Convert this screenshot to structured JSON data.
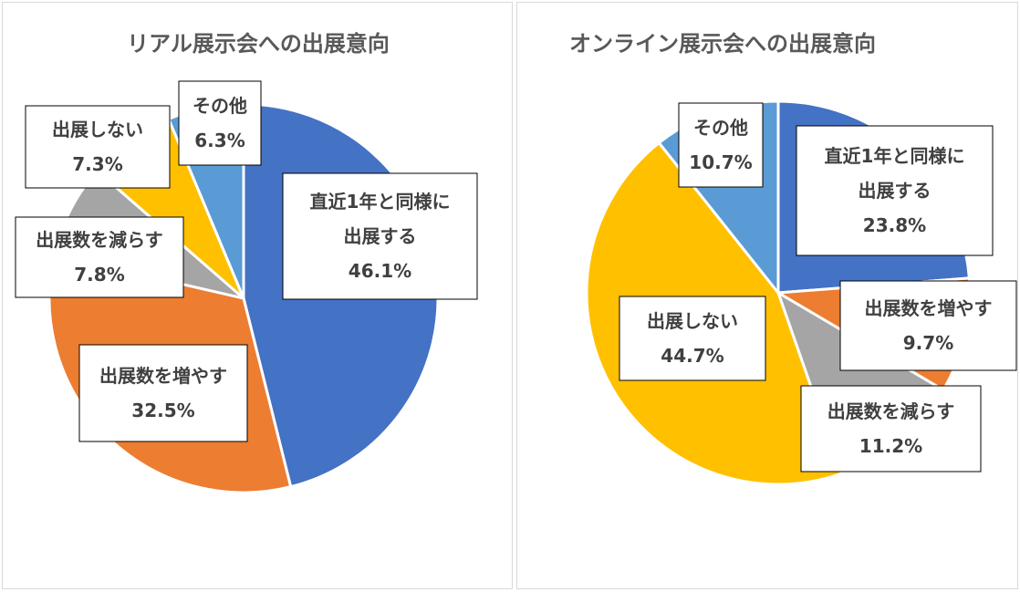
{
  "chart_data": [
    {
      "type": "pie",
      "title": "リアル展示会への出展意向",
      "slices": [
        {
          "label_lines": [
            "直近1年と同様に",
            "出展する"
          ],
          "value": 46.1,
          "value_label": "46.1%",
          "color": "#4472C4"
        },
        {
          "label_lines": [
            "出展数を増やす"
          ],
          "value": 32.5,
          "value_label": "32.5%",
          "color": "#ED7D31"
        },
        {
          "label_lines": [
            "出展数を減らす"
          ],
          "value": 7.8,
          "value_label": "7.8%",
          "color": "#A5A5A5"
        },
        {
          "label_lines": [
            "出展しない"
          ],
          "value": 7.3,
          "value_label": "7.3%",
          "color": "#FFC000"
        },
        {
          "label_lines": [
            "その他"
          ],
          "value": 6.3,
          "value_label": "6.3%",
          "color": "#5B9BD5"
        }
      ]
    },
    {
      "type": "pie",
      "title": "オンライン展示会への出展意向",
      "slices": [
        {
          "label_lines": [
            "直近1年と同様に",
            "出展する"
          ],
          "value": 23.8,
          "value_label": "23.8%",
          "color": "#4472C4"
        },
        {
          "label_lines": [
            "出展数を増やす"
          ],
          "value": 9.7,
          "value_label": "9.7%",
          "color": "#ED7D31"
        },
        {
          "label_lines": [
            "出展数を減らす"
          ],
          "value": 11.2,
          "value_label": "11.2%",
          "color": "#A5A5A5"
        },
        {
          "label_lines": [
            "出展しない"
          ],
          "value": 44.7,
          "value_label": "44.7%",
          "color": "#FFC000"
        },
        {
          "label_lines": [
            "その他"
          ],
          "value": 10.7,
          "value_label": "10.7%",
          "color": "#5B9BD5"
        }
      ]
    }
  ]
}
